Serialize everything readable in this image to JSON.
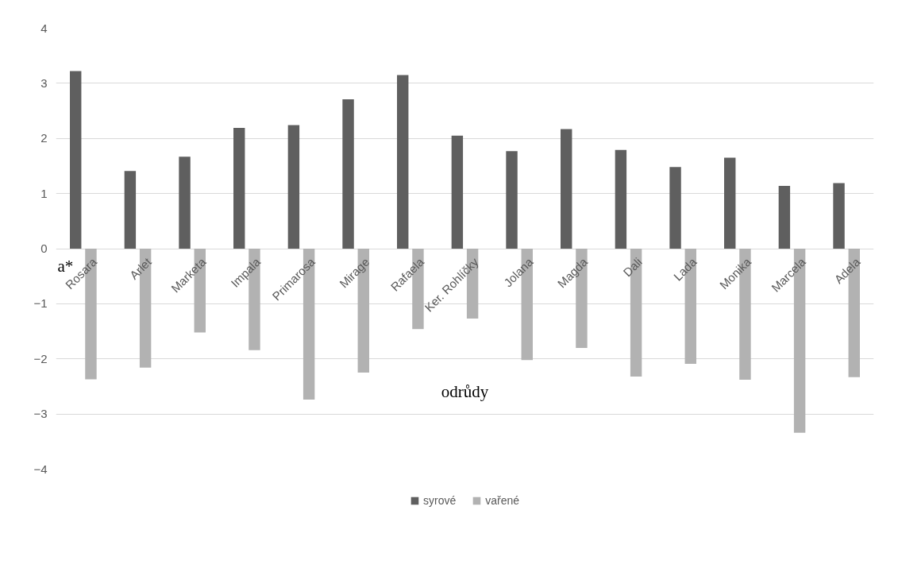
{
  "chart_data": {
    "type": "bar",
    "xlabel": "odrůdy",
    "ylabel": "a*",
    "categories": [
      "Rosara",
      "Arlet",
      "Marketa",
      "Impala",
      "Primarosa",
      "Mirage",
      "Rafaela",
      "Ker. Rohlíčky",
      "Jolana",
      "Magda",
      "Dali",
      "Lada",
      "Monika",
      "Marcela",
      "Adela"
    ],
    "series": [
      {
        "name": "syrové",
        "color": "#5f5f5f",
        "values": [
          3.22,
          1.41,
          1.67,
          2.19,
          2.24,
          2.71,
          3.15,
          2.05,
          1.77,
          2.17,
          1.79,
          1.48,
          1.65,
          1.14,
          1.19
        ]
      },
      {
        "name": "vařené",
        "color": "#b2b2b2",
        "values": [
          -2.37,
          -2.16,
          -1.52,
          -1.84,
          -2.74,
          -2.25,
          -1.46,
          -1.27,
          -2.02,
          -1.8,
          -2.32,
          -2.09,
          -2.38,
          -3.34,
          -2.33
        ]
      }
    ],
    "ylim": [
      -4,
      4
    ],
    "yticks": [
      -4,
      -3,
      -2,
      -1,
      0,
      1,
      2,
      3,
      4
    ],
    "grid": "y",
    "legend": "bottom"
  }
}
